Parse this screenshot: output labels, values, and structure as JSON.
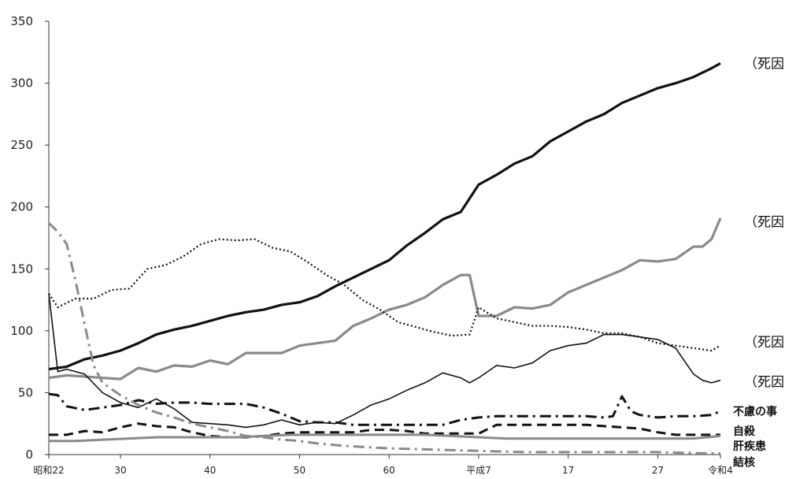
{
  "chart_data": {
    "type": "line",
    "title": "",
    "xlabel": "",
    "ylabel": "",
    "ylim": [
      0,
      350
    ],
    "yticks": [
      0,
      50,
      100,
      150,
      200,
      250,
      300,
      350
    ],
    "xrange": [
      1947,
      2022
    ],
    "xticks": [
      {
        "label": "昭和22",
        "year": 1947
      },
      {
        "label": "30",
        "year": 1955
      },
      {
        "label": "40",
        "year": 1965
      },
      {
        "label": "50",
        "year": 1975
      },
      {
        "label": "60",
        "year": 1985
      },
      {
        "label": "平成7",
        "year": 1995
      },
      {
        "label": "17",
        "year": 2005
      },
      {
        "label": "27",
        "year": 2015
      },
      {
        "label": "令和4",
        "year": 2022
      }
    ],
    "end_labels": [
      {
        "text": "（死因",
        "value": 316
      },
      {
        "text": "（死因",
        "value": 188
      },
      {
        "text": "（死因",
        "value": 91
      },
      {
        "text": "（死因",
        "value": 59
      },
      {
        "text": "不慮の事",
        "value": 35
      },
      {
        "text": "自殺",
        "value": 19
      },
      {
        "text": "肝疾患",
        "value": 7
      },
      {
        "text": "結核",
        "value": -6
      }
    ],
    "series": [
      {
        "style": "black-solid-thick",
        "x": [
          1947,
          1949,
          1951,
          1953,
          1955,
          1957,
          1959,
          1961,
          1963,
          1965,
          1967,
          1969,
          1971,
          1973,
          1975,
          1977,
          1979,
          1981,
          1983,
          1985,
          1987,
          1989,
          1991,
          1993,
          1995,
          1997,
          1999,
          2001,
          2003,
          2005,
          2007,
          2009,
          2011,
          2013,
          2015,
          2017,
          2019,
          2021,
          2022
        ],
        "y": [
          69,
          71,
          77,
          80,
          84,
          90,
          97,
          101,
          104,
          108,
          112,
          115,
          117,
          121,
          123,
          128,
          136,
          143,
          150,
          157,
          169,
          179,
          190,
          196,
          218,
          226,
          235,
          241,
          253,
          261,
          269,
          275,
          284,
          290,
          296,
          300,
          305,
          312,
          316
        ]
      },
      {
        "style": "gray-solid-thick",
        "x": [
          1947,
          1949,
          1951,
          1953,
          1955,
          1957,
          1959,
          1961,
          1963,
          1965,
          1967,
          1969,
          1971,
          1973,
          1975,
          1977,
          1979,
          1981,
          1983,
          1985,
          1987,
          1989,
          1991,
          1993,
          1994,
          1995,
          1997,
          1999,
          2001,
          2003,
          2005,
          2007,
          2009,
          2011,
          2013,
          2015,
          2017,
          2019,
          2020,
          2021,
          2022
        ],
        "y": [
          62,
          64,
          63,
          62,
          61,
          70,
          67,
          72,
          71,
          76,
          73,
          82,
          82,
          82,
          88,
          90,
          92,
          104,
          110,
          117,
          121,
          127,
          137,
          145,
          145,
          112,
          112,
          119,
          118,
          121,
          131,
          137,
          143,
          149,
          157,
          156,
          158,
          168,
          168,
          174,
          191
        ]
      },
      {
        "style": "black-dotted",
        "x": [
          1947,
          1948,
          1950,
          1952,
          1954,
          1956,
          1958,
          1960,
          1962,
          1964,
          1966,
          1968,
          1970,
          1972,
          1974,
          1976,
          1978,
          1980,
          1982,
          1984,
          1986,
          1988,
          1990,
          1992,
          1994,
          1995,
          1997,
          1999,
          2001,
          2003,
          2005,
          2007,
          2009,
          2011,
          2013,
          2015,
          2017,
          2019,
          2021,
          2022
        ],
        "y": [
          130,
          119,
          126,
          126,
          133,
          134,
          150,
          153,
          160,
          170,
          174,
          173,
          174,
          167,
          164,
          155,
          145,
          137,
          125,
          117,
          107,
          103,
          99,
          96,
          97,
          119,
          110,
          107,
          104,
          104,
          103,
          101,
          98,
          98,
          95,
          90,
          88,
          86,
          84,
          88
        ]
      },
      {
        "style": "black-solid-thin",
        "x": [
          1947,
          1948,
          1949,
          1951,
          1953,
          1955,
          1957,
          1959,
          1961,
          1963,
          1965,
          1967,
          1969,
          1971,
          1973,
          1975,
          1977,
          1979,
          1981,
          1983,
          1985,
          1987,
          1989,
          1991,
          1993,
          1994,
          1995,
          1997,
          1999,
          2001,
          2003,
          2005,
          2007,
          2009,
          2011,
          2013,
          2015,
          2017,
          2019,
          2020,
          2021,
          2022
        ],
        "y": [
          130,
          67,
          69,
          65,
          50,
          42,
          38,
          45,
          37,
          26,
          25,
          24,
          22,
          24,
          28,
          24,
          26,
          25,
          32,
          40,
          45,
          52,
          58,
          66,
          62,
          58,
          62,
          72,
          70,
          74,
          84,
          88,
          90,
          97,
          97,
          95,
          93,
          86,
          65,
          60,
          58,
          60
        ]
      },
      {
        "style": "black-dashdot-thick",
        "x": [
          1947,
          1948,
          1949,
          1951,
          1953,
          1955,
          1957,
          1959,
          1961,
          1963,
          1965,
          1967,
          1969,
          1971,
          1973,
          1975,
          1977,
          1979,
          1981,
          1983,
          1985,
          1987,
          1989,
          1991,
          1993,
          1995,
          1997,
          1999,
          2001,
          2003,
          2005,
          2007,
          2009,
          2010,
          2011,
          2012,
          2013,
          2015,
          2017,
          2019,
          2021,
          2022
        ],
        "y": [
          49,
          48,
          39,
          36,
          38,
          40,
          44,
          41,
          42,
          42,
          41,
          41,
          41,
          38,
          33,
          27,
          26,
          26,
          24,
          24,
          24,
          24,
          24,
          24,
          28,
          30,
          31,
          31,
          31,
          31,
          31,
          31,
          30,
          31,
          47,
          35,
          32,
          30,
          31,
          31,
          32,
          35
        ]
      },
      {
        "style": "black-dashed",
        "x": [
          1947,
          1949,
          1951,
          1953,
          1955,
          1957,
          1959,
          1961,
          1963,
          1965,
          1967,
          1969,
          1971,
          1973,
          1975,
          1977,
          1979,
          1981,
          1983,
          1985,
          1987,
          1989,
          1991,
          1993,
          1995,
          1997,
          1999,
          2001,
          2003,
          2005,
          2007,
          2009,
          2011,
          2013,
          2015,
          2017,
          2019,
          2021,
          2022
        ],
        "y": [
          16,
          16,
          19,
          18,
          22,
          25,
          23,
          22,
          18,
          15,
          14,
          14,
          15,
          17,
          18,
          18,
          18,
          18,
          20,
          20,
          19,
          17,
          17,
          17,
          17,
          24,
          24,
          24,
          24,
          24,
          24,
          23,
          22,
          21,
          18,
          16,
          16,
          16,
          16
        ]
      },
      {
        "style": "gray-solid-medium",
        "x": [
          1947,
          1950,
          1953,
          1956,
          1959,
          1962,
          1965,
          1968,
          1971,
          1974,
          1977,
          1980,
          1983,
          1986,
          1989,
          1992,
          1995,
          1998,
          2001,
          2004,
          2007,
          2010,
          2013,
          2016,
          2019,
          2022
        ],
        "y": [
          11,
          11,
          12,
          13,
          14,
          14,
          14,
          14,
          15,
          16,
          16,
          16,
          16,
          16,
          16,
          15,
          14,
          13,
          13,
          13,
          13,
          13,
          13,
          13,
          13,
          15
        ]
      },
      {
        "style": "gray-dashdot",
        "x": [
          1947,
          1948,
          1949,
          1950,
          1951,
          1952,
          1953,
          1955,
          1957,
          1959,
          1961,
          1963,
          1965,
          1967,
          1969,
          1971,
          1973,
          1975,
          1977,
          1980,
          1985,
          1990,
          1995,
          2000,
          2005,
          2010,
          2015,
          2020,
          2022
        ],
        "y": [
          187,
          180,
          170,
          140,
          105,
          72,
          58,
          48,
          40,
          34,
          30,
          25,
          22,
          19,
          15,
          14,
          12,
          11,
          9,
          7,
          5,
          4,
          3,
          2,
          2,
          2,
          2,
          1,
          1
        ]
      }
    ]
  }
}
